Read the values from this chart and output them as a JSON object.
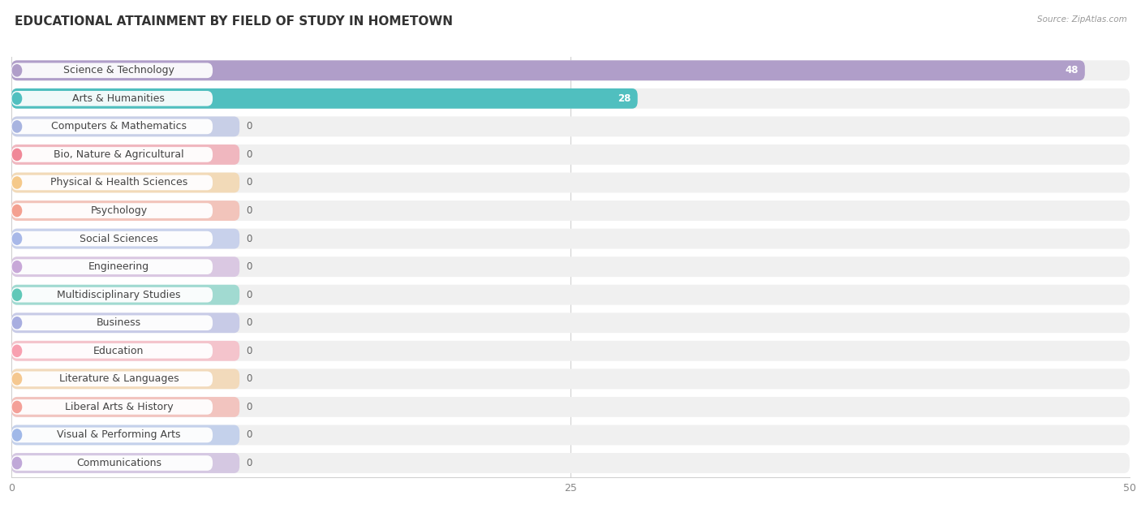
{
  "title": "EDUCATIONAL ATTAINMENT BY FIELD OF STUDY IN HOMETOWN",
  "source": "Source: ZipAtlas.com",
  "categories": [
    "Science & Technology",
    "Arts & Humanities",
    "Computers & Mathematics",
    "Bio, Nature & Agricultural",
    "Physical & Health Sciences",
    "Psychology",
    "Social Sciences",
    "Engineering",
    "Multidisciplinary Studies",
    "Business",
    "Education",
    "Literature & Languages",
    "Liberal Arts & History",
    "Visual & Performing Arts",
    "Communications"
  ],
  "values": [
    48,
    28,
    0,
    0,
    0,
    0,
    0,
    0,
    0,
    0,
    0,
    0,
    0,
    0,
    0
  ],
  "bar_colors": [
    "#b09ec9",
    "#50bfbf",
    "#a8b4e0",
    "#f08898",
    "#f5c98a",
    "#f4a090",
    "#a8b8e8",
    "#c8a8d8",
    "#60c8b8",
    "#a8aee0",
    "#f8a0b0",
    "#f5c890",
    "#f4a098",
    "#a0b8e8",
    "#c0a8d8"
  ],
  "xlim": [
    0,
    50
  ],
  "xticks": [
    0,
    25,
    50
  ],
  "row_bg_color": "#f0f0f0",
  "white_color": "#ffffff",
  "title_fontsize": 11,
  "label_fontsize": 9,
  "value_fontsize": 8.5
}
